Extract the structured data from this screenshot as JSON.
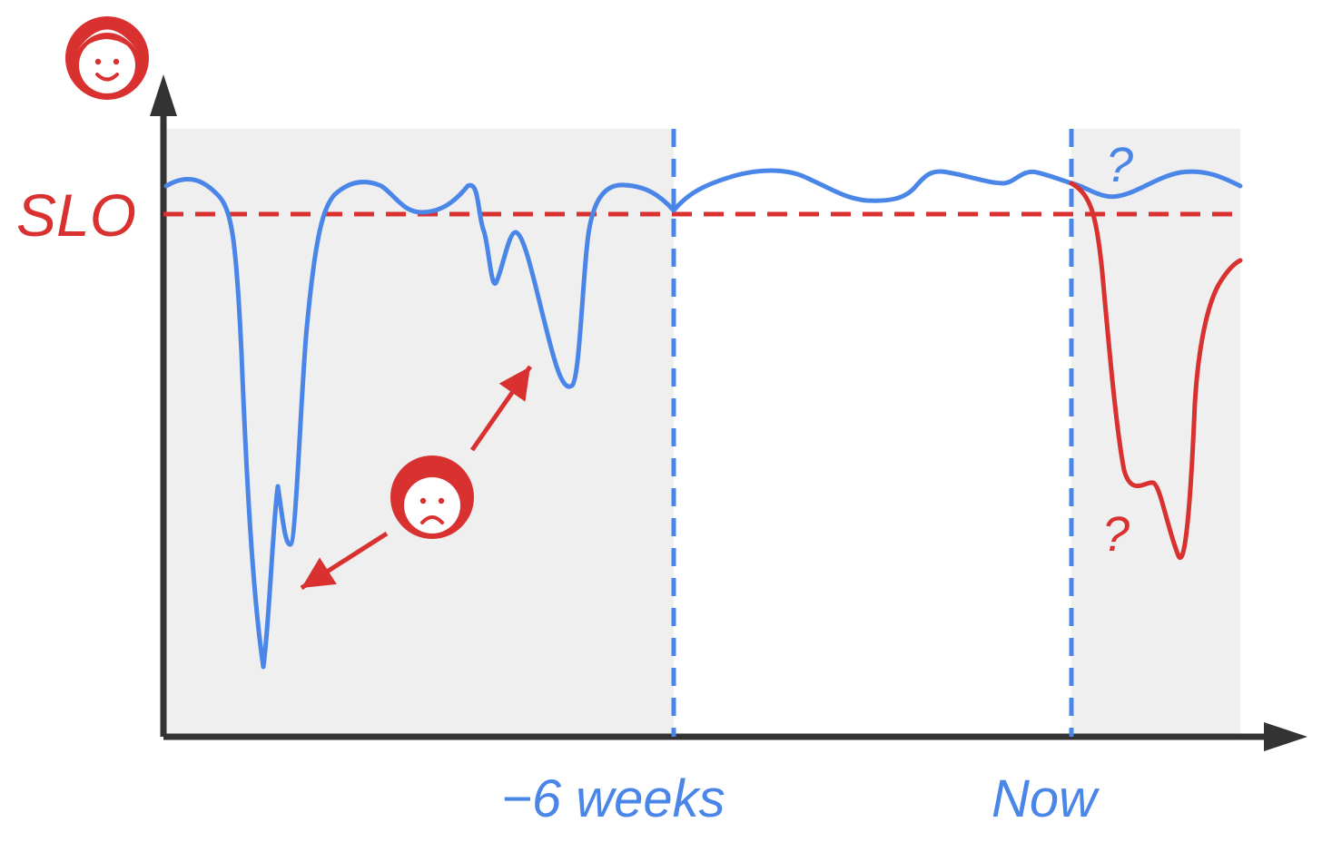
{
  "diagram": {
    "slo_label": "SLO",
    "x_labels": {
      "six_weeks": "−6 weeks",
      "now": "Now"
    },
    "question_marks": {
      "blue": "?",
      "red": "?"
    },
    "icons": {
      "top_face": "happy-face-icon",
      "middle_face": "sad-face-icon"
    },
    "colors": {
      "blue": "#4a86e8",
      "red": "#d93030",
      "axis": "#333333",
      "shade": "#efefef"
    }
  }
}
